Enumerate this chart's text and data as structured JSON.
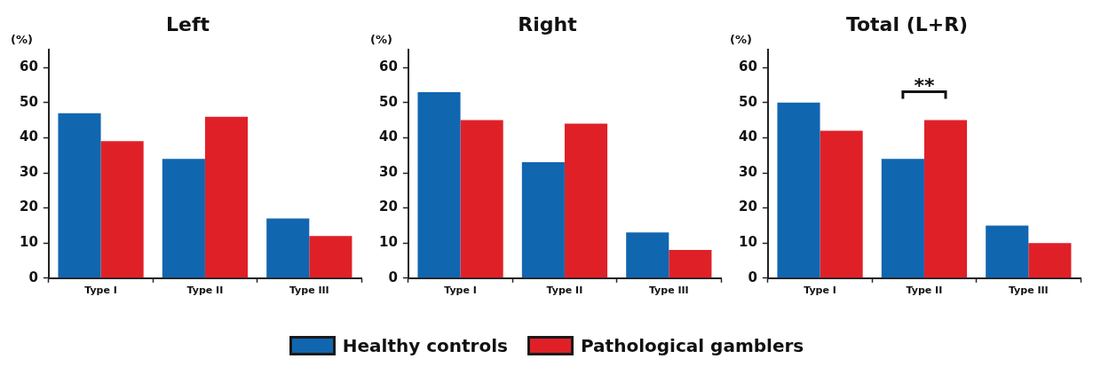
{
  "chart_data": [
    {
      "type": "bar",
      "title": "Left",
      "ylabel": "(%)",
      "categories": [
        "Type I",
        "Type II",
        "Type III"
      ],
      "series": [
        {
          "name": "Healthy controls",
          "color": "#1166b0",
          "values": [
            47,
            34,
            17
          ]
        },
        {
          "name": "Pathological gamblers",
          "color": "#e02027",
          "values": [
            39,
            46,
            12
          ]
        }
      ],
      "ylim": [
        0,
        65
      ],
      "yticks": [
        0,
        10,
        20,
        30,
        40,
        50,
        60
      ],
      "grid": false,
      "legend": "bottom"
    },
    {
      "type": "bar",
      "title": "Right",
      "ylabel": "(%)",
      "categories": [
        "Type I",
        "Type II",
        "Type III"
      ],
      "series": [
        {
          "color": "#1166b0",
          "values": [
            53,
            33,
            13
          ]
        },
        {
          "color": "#e02027",
          "values": [
            45,
            44,
            8
          ]
        }
      ],
      "ylim": [
        0,
        65
      ],
      "yticks": [
        0,
        10,
        20,
        30,
        40,
        50,
        60
      ],
      "grid": false
    },
    {
      "type": "bar",
      "title": "Total (L+R)",
      "ylabel": "(%)",
      "categories": [
        "Type I",
        "Type II",
        "Type III"
      ],
      "series": [
        {
          "color": "#1166b0",
          "values": [
            50,
            34,
            15
          ]
        },
        {
          "color": "#e02027",
          "values": [
            42,
            45,
            10
          ]
        }
      ],
      "ylim": [
        0,
        65
      ],
      "yticks": [
        0,
        10,
        20,
        30,
        40,
        50,
        60
      ],
      "grid": false,
      "annotations": [
        {
          "text": "**",
          "x": "Type II",
          "y": 45
        }
      ]
    }
  ]
}
